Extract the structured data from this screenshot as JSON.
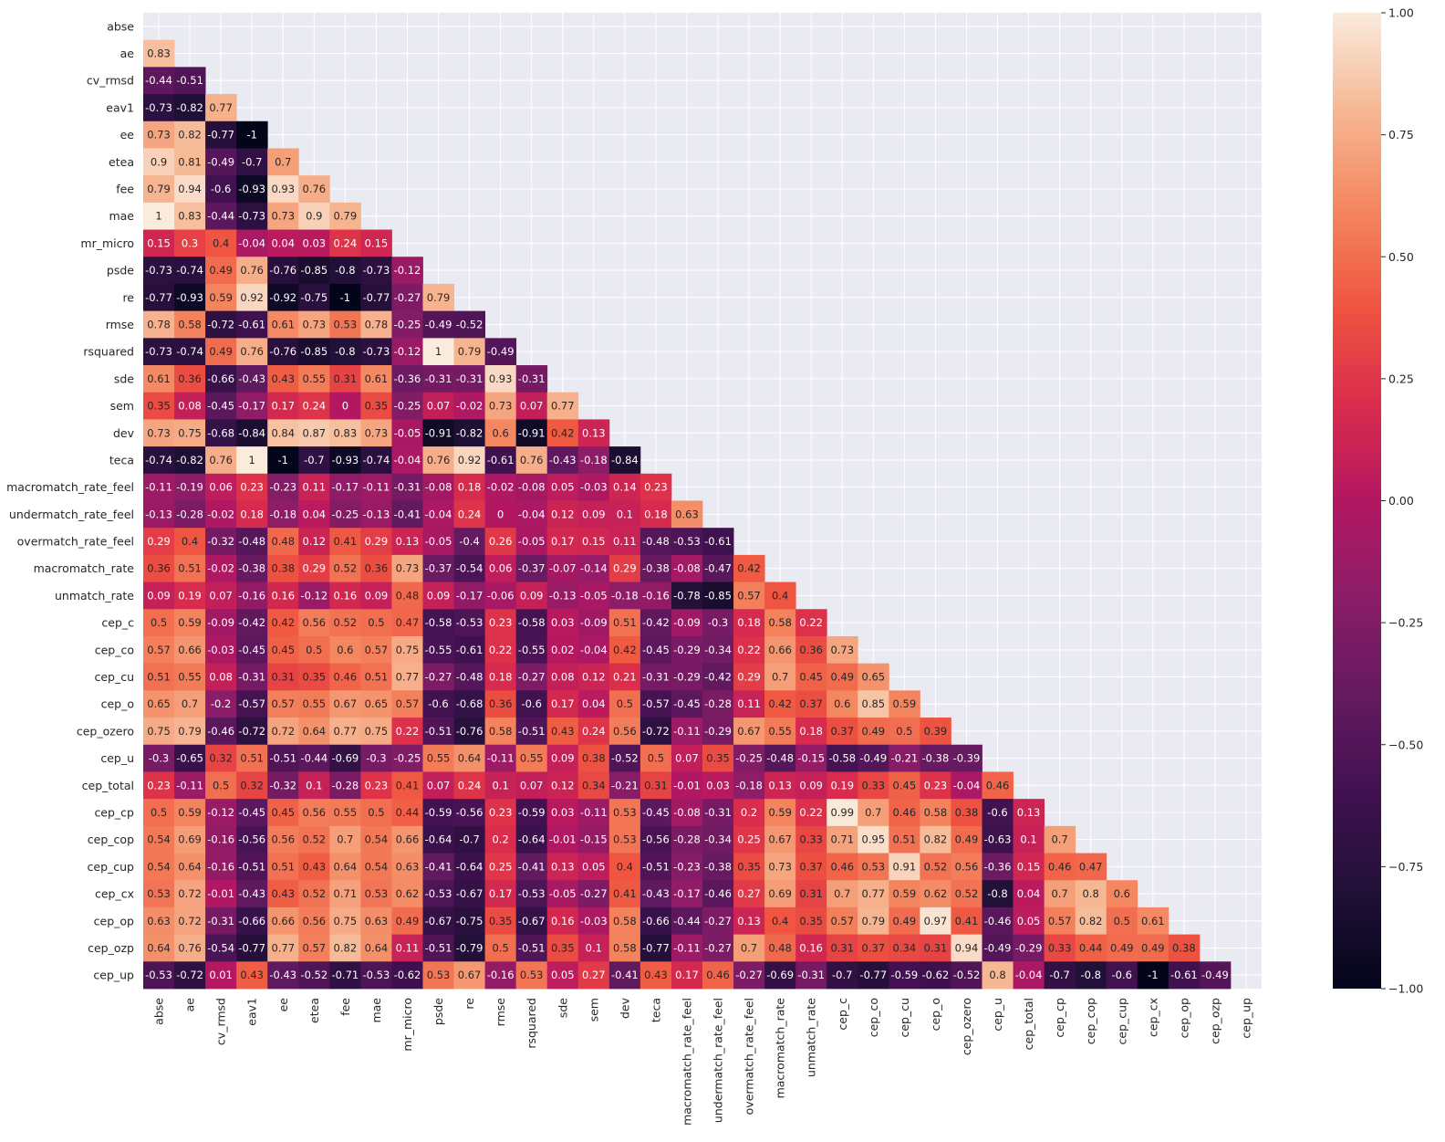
{
  "chart_data": {
    "type": "heatmap",
    "title": "",
    "xlabel": "",
    "ylabel": "",
    "mask": "upper_triangle_including_diagonal",
    "labels": [
      "abse",
      "ae",
      "cv_rmsd",
      "eav1",
      "ee",
      "etea",
      "fee",
      "mae",
      "mr_micro",
      "psde",
      "re",
      "rmse",
      "rsquared",
      "sde",
      "sem",
      "dev",
      "teca",
      "macromatch_rate_feel",
      "undermatch_rate_feel",
      "overmatch_rate_feel",
      "macromatch_rate",
      "unmatch_rate",
      "cep_c",
      "cep_co",
      "cep_cu",
      "cep_o",
      "cep_ozero",
      "cep_u",
      "cep_total",
      "cep_cp",
      "cep_cop",
      "cep_cup",
      "cep_cx",
      "cep_op",
      "cep_ozp",
      "cep_up"
    ],
    "rows": [
      [],
      [
        0.83
      ],
      [
        -0.44,
        -0.51
      ],
      [
        -0.73,
        -0.82,
        0.77
      ],
      [
        0.73,
        0.82,
        -0.77,
        -1
      ],
      [
        0.9,
        0.81,
        -0.49,
        -0.7,
        0.7
      ],
      [
        0.79,
        0.94,
        -0.6,
        -0.93,
        0.93,
        0.76
      ],
      [
        1,
        0.83,
        -0.44,
        -0.73,
        0.73,
        0.9,
        0.79
      ],
      [
        0.15,
        0.3,
        0.4,
        -0.04,
        0.04,
        0.03,
        0.24,
        0.15
      ],
      [
        -0.73,
        -0.74,
        0.49,
        0.76,
        -0.76,
        -0.85,
        -0.8,
        -0.73,
        -0.12
      ],
      [
        -0.77,
        -0.93,
        0.59,
        0.92,
        -0.92,
        -0.75,
        -1,
        -0.77,
        -0.27,
        0.79
      ],
      [
        0.78,
        0.58,
        -0.72,
        -0.61,
        0.61,
        0.73,
        0.53,
        0.78,
        -0.25,
        -0.49,
        -0.52
      ],
      [
        -0.73,
        -0.74,
        0.49,
        0.76,
        -0.76,
        -0.85,
        -0.8,
        -0.73,
        -0.12,
        1,
        0.79,
        -0.49
      ],
      [
        0.61,
        0.36,
        -0.66,
        -0.43,
        0.43,
        0.55,
        0.31,
        0.61,
        -0.36,
        -0.31,
        -0.31,
        0.93,
        -0.31
      ],
      [
        0.35,
        0.08,
        -0.45,
        -0.17,
        0.17,
        0.24,
        0,
        0.35,
        -0.25,
        0.07,
        -0.02,
        0.73,
        0.07,
        0.77
      ],
      [
        0.73,
        0.75,
        -0.68,
        -0.84,
        0.84,
        0.87,
        0.83,
        0.73,
        -0.05,
        -0.91,
        -0.82,
        0.6,
        -0.91,
        0.42,
        0.13
      ],
      [
        -0.74,
        -0.82,
        0.76,
        1,
        -1,
        -0.7,
        -0.93,
        -0.74,
        -0.04,
        0.76,
        0.92,
        -0.61,
        0.76,
        -0.43,
        -0.18,
        -0.84
      ],
      [
        -0.11,
        -0.19,
        0.06,
        0.23,
        -0.23,
        0.11,
        -0.17,
        -0.11,
        -0.31,
        -0.08,
        0.18,
        -0.02,
        -0.08,
        0.05,
        -0.03,
        0.14,
        0.23
      ],
      [
        -0.13,
        -0.28,
        -0.02,
        0.18,
        -0.18,
        0.04,
        -0.25,
        -0.13,
        -0.41,
        -0.04,
        0.24,
        0,
        -0.04,
        0.12,
        0.09,
        0.1,
        0.18,
        0.63
      ],
      [
        0.29,
        0.4,
        -0.32,
        -0.48,
        0.48,
        0.12,
        0.41,
        0.29,
        0.13,
        -0.05,
        -0.4,
        0.26,
        -0.05,
        0.17,
        0.15,
        0.11,
        -0.48,
        -0.53,
        -0.61
      ],
      [
        0.36,
        0.51,
        -0.02,
        -0.38,
        0.38,
        0.29,
        0.52,
        0.36,
        0.73,
        -0.37,
        -0.54,
        0.06,
        -0.37,
        -0.07,
        -0.14,
        0.29,
        -0.38,
        -0.08,
        -0.47,
        0.42
      ],
      [
        0.09,
        0.19,
        0.07,
        -0.16,
        0.16,
        -0.12,
        0.16,
        0.09,
        0.48,
        0.09,
        -0.17,
        -0.06,
        0.09,
        -0.13,
        -0.05,
        -0.18,
        -0.16,
        -0.78,
        -0.85,
        0.57,
        0.4
      ],
      [
        0.5,
        0.59,
        -0.09,
        -0.42,
        0.42,
        0.56,
        0.52,
        0.5,
        0.47,
        -0.58,
        -0.53,
        0.23,
        -0.58,
        0.03,
        -0.09,
        0.51,
        -0.42,
        -0.09,
        -0.3,
        0.18,
        0.58,
        0.22
      ],
      [
        0.57,
        0.66,
        -0.03,
        -0.45,
        0.45,
        0.5,
        0.6,
        0.57,
        0.75,
        -0.55,
        -0.61,
        0.22,
        -0.55,
        0.02,
        -0.04,
        0.42,
        -0.45,
        -0.29,
        -0.34,
        0.22,
        0.66,
        0.36,
        0.73
      ],
      [
        0.51,
        0.55,
        0.08,
        -0.31,
        0.31,
        0.35,
        0.46,
        0.51,
        0.77,
        -0.27,
        -0.48,
        0.18,
        -0.27,
        0.08,
        0.12,
        0.21,
        -0.31,
        -0.29,
        -0.42,
        0.29,
        0.7,
        0.45,
        0.49,
        0.65
      ],
      [
        0.65,
        0.7,
        -0.2,
        -0.57,
        0.57,
        0.55,
        0.67,
        0.65,
        0.57,
        -0.6,
        -0.68,
        0.36,
        -0.6,
        0.17,
        0.04,
        0.5,
        -0.57,
        -0.45,
        -0.28,
        0.11,
        0.42,
        0.37,
        0.6,
        0.85,
        0.59
      ],
      [
        0.75,
        0.79,
        -0.46,
        -0.72,
        0.72,
        0.64,
        0.77,
        0.75,
        0.22,
        -0.51,
        -0.76,
        0.58,
        -0.51,
        0.43,
        0.24,
        0.56,
        -0.72,
        -0.11,
        -0.29,
        0.67,
        0.55,
        0.18,
        0.37,
        0.49,
        0.5,
        0.39
      ],
      [
        -0.3,
        -0.65,
        0.32,
        0.51,
        -0.51,
        -0.44,
        -0.69,
        -0.3,
        -0.25,
        0.55,
        0.64,
        -0.11,
        0.55,
        0.09,
        0.38,
        -0.52,
        0.5,
        0.07,
        0.35,
        -0.25,
        -0.48,
        -0.15,
        -0.58,
        -0.49,
        -0.21,
        -0.38,
        -0.39
      ],
      [
        0.23,
        -0.11,
        0.5,
        0.32,
        -0.32,
        0.1,
        -0.28,
        0.23,
        0.41,
        0.07,
        0.24,
        0.1,
        0.07,
        0.12,
        0.34,
        -0.21,
        0.31,
        -0.01,
        0.03,
        -0.18,
        0.13,
        0.09,
        0.19,
        0.33,
        0.45,
        0.23,
        -0.04,
        0.46
      ],
      [
        0.5,
        0.59,
        -0.12,
        -0.45,
        0.45,
        0.56,
        0.55,
        0.5,
        0.44,
        -0.59,
        -0.56,
        0.23,
        -0.59,
        0.03,
        -0.11,
        0.53,
        -0.45,
        -0.08,
        -0.31,
        0.2,
        0.59,
        0.22,
        0.99,
        0.7,
        0.46,
        0.58,
        0.38,
        -0.6,
        0.13
      ],
      [
        0.54,
        0.69,
        -0.16,
        -0.56,
        0.56,
        0.52,
        0.7,
        0.54,
        0.66,
        -0.64,
        -0.7,
        0.2,
        -0.64,
        -0.01,
        -0.15,
        0.53,
        -0.56,
        -0.28,
        -0.34,
        0.25,
        0.67,
        0.33,
        0.71,
        0.95,
        0.51,
        0.82,
        0.49,
        -0.63,
        0.1,
        0.7
      ],
      [
        0.54,
        0.64,
        -0.16,
        -0.51,
        0.51,
        0.43,
        0.64,
        0.54,
        0.63,
        -0.41,
        -0.64,
        0.25,
        -0.41,
        0.13,
        0.05,
        0.4,
        -0.51,
        -0.23,
        -0.38,
        0.35,
        0.73,
        0.37,
        0.46,
        0.53,
        0.91,
        0.52,
        0.56,
        -0.36,
        0.15,
        0.46,
        0.47
      ],
      [
        0.53,
        0.72,
        -0.01,
        -0.43,
        0.43,
        0.52,
        0.71,
        0.53,
        0.62,
        -0.53,
        -0.67,
        0.17,
        -0.53,
        -0.05,
        -0.27,
        0.41,
        -0.43,
        -0.17,
        -0.46,
        0.27,
        0.69,
        0.31,
        0.7,
        0.77,
        0.59,
        0.62,
        0.52,
        -0.8,
        0.04,
        0.7,
        0.8,
        0.6
      ],
      [
        0.63,
        0.72,
        -0.31,
        -0.66,
        0.66,
        0.56,
        0.75,
        0.63,
        0.49,
        -0.67,
        -0.75,
        0.35,
        -0.67,
        0.16,
        -0.03,
        0.58,
        -0.66,
        -0.44,
        -0.27,
        0.13,
        0.4,
        0.35,
        0.57,
        0.79,
        0.49,
        0.97,
        0.41,
        -0.46,
        0.05,
        0.57,
        0.82,
        0.5,
        0.61
      ],
      [
        0.64,
        0.76,
        -0.54,
        -0.77,
        0.77,
        0.57,
        0.82,
        0.64,
        0.11,
        -0.51,
        -0.79,
        0.5,
        -0.51,
        0.35,
        0.1,
        0.58,
        -0.77,
        -0.11,
        -0.27,
        0.7,
        0.48,
        0.16,
        0.31,
        0.37,
        0.34,
        0.31,
        0.94,
        -0.49,
        -0.29,
        0.33,
        0.44,
        0.49,
        0.49,
        0.38
      ],
      [
        -0.53,
        -0.72,
        0.01,
        0.43,
        -0.43,
        -0.52,
        -0.71,
        -0.53,
        -0.62,
        0.53,
        0.67,
        -0.16,
        0.53,
        0.05,
        0.27,
        -0.41,
        0.43,
        0.17,
        0.46,
        -0.27,
        -0.69,
        -0.31,
        -0.7,
        -0.77,
        -0.59,
        -0.62,
        -0.52,
        0.8,
        -0.04,
        -0.7,
        -0.8,
        -0.6,
        -1,
        -0.61,
        -0.49
      ]
    ],
    "colorbar": {
      "min": -1,
      "max": 1,
      "ticks": [
        "1.00",
        "0.75",
        "0.50",
        "0.25",
        "0.00",
        "−0.25",
        "−0.50",
        "−0.75",
        "−1.00"
      ],
      "colormap": "rocket"
    },
    "grid": true,
    "background_color": "#EAEAF2"
  }
}
